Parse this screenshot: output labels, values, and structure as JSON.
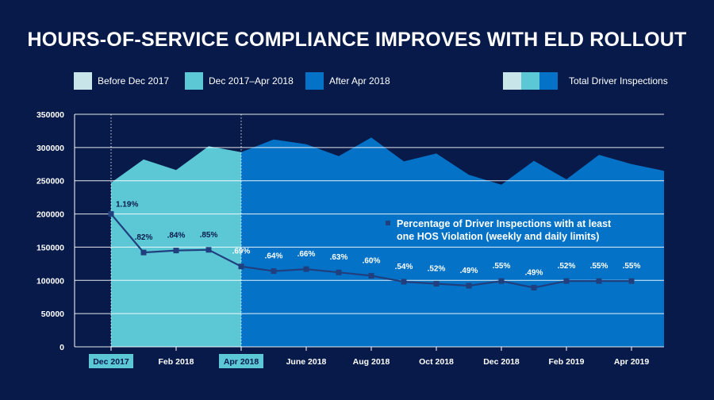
{
  "title": "HOURS-OF-SERVICE COMPLIANCE IMPROVES WITH ELD ROLLOUT",
  "legend": {
    "items": [
      {
        "label": "Before Dec 2017",
        "color": "#c8e6e9"
      },
      {
        "label": "Dec 2017–Apr 2018",
        "color": "#5cc8d6"
      },
      {
        "label": "After Apr 2018",
        "color": "#0472c6"
      }
    ],
    "total_label": "Total Driver Inspections",
    "total_colors": [
      "#c8e6e9",
      "#5cc8d6",
      "#0472c6"
    ]
  },
  "colors": {
    "background": "#071a4a",
    "phase_before": "#c8e6e9",
    "phase_rollout": "#5cc8d6",
    "phase_after": "#0472c6",
    "line": "#1f3f7e",
    "gridline": "#ffffff"
  },
  "chart_data": {
    "type": "area",
    "xlabel": "",
    "ylabel": "",
    "ylim": [
      0,
      350000
    ],
    "y_ticks": [
      0,
      50000,
      100000,
      150000,
      200000,
      250000,
      300000,
      350000
    ],
    "grid": true,
    "x_ticks": [
      {
        "label": "Dec 2017",
        "highlight": true
      },
      {
        "label": "Feb 2018",
        "highlight": false
      },
      {
        "label": "Apr 2018",
        "highlight": true
      },
      {
        "label": "June 2018",
        "highlight": false
      },
      {
        "label": "Aug 2018",
        "highlight": false
      },
      {
        "label": "Oct 2018",
        "highlight": false
      },
      {
        "label": "Dec 2018",
        "highlight": false
      },
      {
        "label": "Feb 2019",
        "highlight": false
      },
      {
        "label": "Apr 2019",
        "highlight": false
      }
    ],
    "phase_markers": [
      "Dec 2017",
      "Apr 2018"
    ],
    "series": [
      {
        "name": "Total Driver Inspections",
        "kind": "area",
        "values": [
          247000,
          282000,
          266000,
          302000,
          293000,
          312000,
          305000,
          287000,
          315000,
          279000,
          291000,
          259000,
          244000,
          280000,
          252000,
          289000,
          275000,
          265000
        ]
      },
      {
        "name": "Percentage of Driver Inspections with at least one HOS Violation (weekly and daily limits)",
        "kind": "line",
        "values": [
          200000,
          142000,
          145000,
          146000,
          121000,
          114000,
          117000,
          112000,
          107000,
          98000,
          95000,
          92000,
          99000,
          89000,
          99000,
          99000,
          99000
        ],
        "labels": [
          "1.19%",
          ".82%",
          ".84%",
          ".85%",
          ".69%",
          ".64%",
          ".66%",
          ".63%",
          ".60%",
          ".54%",
          ".52%",
          ".49%",
          ".55%",
          ".49%",
          ".52%",
          ".55%",
          ".55%"
        ]
      }
    ]
  }
}
